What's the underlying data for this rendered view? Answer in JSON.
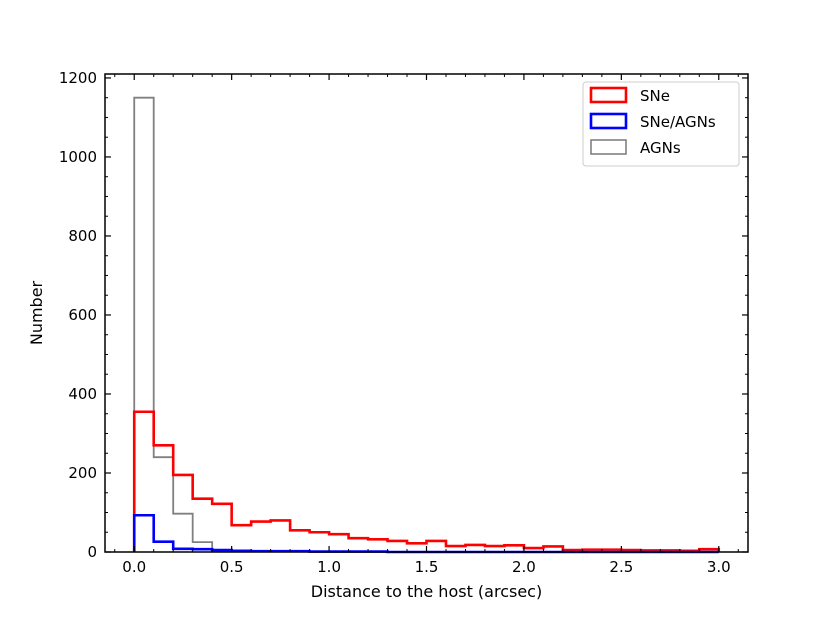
{
  "chart_data": {
    "type": "histogram",
    "title": "",
    "xlabel": "Distance to the host (arcsec)",
    "ylabel": "Number",
    "xlim": [
      -0.15,
      3.15
    ],
    "ylim": [
      0,
      1210
    ],
    "xticks": [
      0.0,
      0.5,
      1.0,
      1.5,
      2.0,
      2.5,
      3.0
    ],
    "xtick_labels": [
      "0.0",
      "0.5",
      "1.0",
      "1.5",
      "2.0",
      "2.5",
      "3.0"
    ],
    "yticks": [
      0,
      200,
      400,
      600,
      800,
      1000,
      1200
    ],
    "ytick_labels": [
      "0",
      "200",
      "400",
      "600",
      "800",
      "1000",
      "1200"
    ],
    "bin_edges": [
      0.0,
      0.1,
      0.2,
      0.3,
      0.4,
      0.5,
      0.6,
      0.7,
      0.8,
      0.9,
      1.0,
      1.1,
      1.2,
      1.3,
      1.4,
      1.5,
      1.6,
      1.7,
      1.8,
      1.9,
      2.0,
      2.1,
      2.2,
      2.3,
      2.4,
      2.5,
      2.6,
      2.7,
      2.8,
      2.9,
      3.0
    ],
    "grid": false,
    "legend_position": "top-right",
    "series": [
      {
        "name": "SNe",
        "color": "#ff0000",
        "counts": [
          355,
          270,
          195,
          135,
          122,
          68,
          77,
          80,
          55,
          50,
          45,
          35,
          32,
          28,
          22,
          28,
          15,
          18,
          15,
          17,
          10,
          14,
          5,
          6,
          6,
          5,
          4,
          4,
          3,
          7
        ]
      },
      {
        "name": "SNe/AGNs",
        "color": "#0000ff",
        "counts": [
          93,
          26,
          8,
          7,
          5,
          3,
          2,
          2,
          2,
          1,
          1,
          1,
          1,
          0,
          0,
          0,
          0,
          0,
          0,
          0,
          0,
          0,
          0,
          0,
          0,
          0,
          0,
          0,
          0,
          0
        ]
      },
      {
        "name": "AGNs",
        "color": "#808080",
        "counts": [
          1150,
          240,
          97,
          25,
          5,
          3,
          2,
          2,
          1,
          1,
          1,
          1,
          1,
          0,
          0,
          0,
          0,
          0,
          0,
          0,
          0,
          0,
          0,
          0,
          0,
          0,
          0,
          0,
          0,
          0
        ]
      }
    ]
  }
}
